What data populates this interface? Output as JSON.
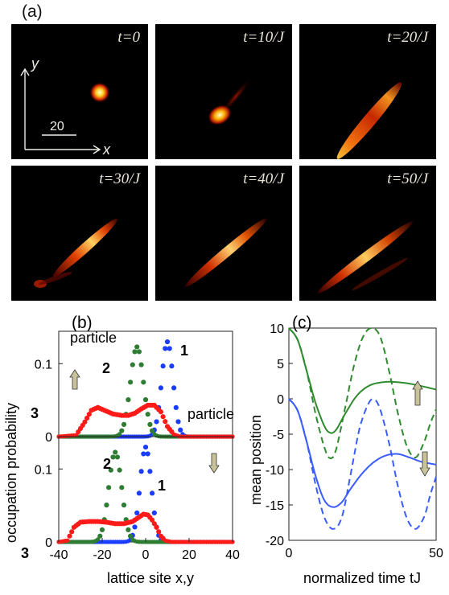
{
  "panel_a": {
    "label": "(a)",
    "frames": [
      {
        "time_label": "t=0"
      },
      {
        "time_label": "t=10/J"
      },
      {
        "time_label": "t=20/J"
      },
      {
        "time_label": "t=30/J"
      },
      {
        "time_label": "t=40/J"
      },
      {
        "time_label": "t=50/J"
      }
    ],
    "axis_y": "y",
    "axis_x": "x",
    "scale_bar": "20"
  },
  "chart_data": [
    {
      "panel": "(b)",
      "type": "scatter",
      "ylabel": "occupation probability",
      "xlabel": "lattice site x,y",
      "x_ticks": [
        "-40",
        "-20",
        "0",
        "20",
        "40"
      ],
      "xlim": [
        -40,
        40
      ],
      "subplots": [
        {
          "annotation": "particle",
          "spin": "up",
          "ylim": [
            0,
            0.14
          ],
          "y_ticks": [
            "0",
            "0.1"
          ],
          "series": [
            {
              "name": "1",
              "color": "#1a3cff",
              "center": 10,
              "width": 2.6,
              "peak": 0.13,
              "offset": 0
            },
            {
              "name": "2",
              "color": "#2e7d32",
              "center": -4,
              "width": 3.0,
              "peak": 0.123,
              "offset": 0
            },
            {
              "name": "3",
              "color": "#ff1a1a",
              "points": [
                [
                  -40,
                  0
                ],
                [
                  -32,
                  0.002
                ],
                [
                  -28,
                  0.02
                ],
                [
                  -25,
                  0.036
                ],
                [
                  -22,
                  0.04
                ],
                [
                  -19,
                  0.036
                ],
                [
                  -15,
                  0.031
                ],
                [
                  -11,
                  0.029
                ],
                [
                  -8,
                  0.029
                ],
                [
                  -5,
                  0.032
                ],
                [
                  -2,
                  0.038
                ],
                [
                  1,
                  0.043
                ],
                [
                  4,
                  0.043
                ],
                [
                  7,
                  0.034
                ],
                [
                  10,
                  0.014
                ],
                [
                  13,
                  0.003
                ],
                [
                  16,
                  0
                ],
                [
                  40,
                  0
                ]
              ]
            }
          ],
          "series_labels": [
            "1",
            "2",
            "3"
          ]
        },
        {
          "annotation": "particle",
          "spin": "down",
          "ylim": [
            0,
            0.14
          ],
          "y_ticks": [
            "0",
            "0.1"
          ],
          "series": [
            {
              "name": "1",
              "color": "#1a3cff",
              "center": 0,
              "width": 2.6,
              "peak": 0.13,
              "offset": 0
            },
            {
              "name": "2",
              "color": "#2e7d32",
              "center": -14,
              "width": 3.0,
              "peak": 0.123,
              "offset": 0
            },
            {
              "name": "3",
              "color": "#ff1a1a",
              "points": [
                [
                  -40,
                  0
                ],
                [
                  -36,
                  0.002
                ],
                [
                  -33,
                  0.02
                ],
                [
                  -30,
                  0.027
                ],
                [
                  -26,
                  0.028
                ],
                [
                  -22,
                  0.028
                ],
                [
                  -18,
                  0.027
                ],
                [
                  -14,
                  0.025
                ],
                [
                  -10,
                  0.025
                ],
                [
                  -6,
                  0.028
                ],
                [
                  -3,
                  0.034
                ],
                [
                  -1,
                  0.038
                ],
                [
                  1,
                  0.037
                ],
                [
                  3,
                  0.03
                ],
                [
                  5,
                  0.02
                ],
                [
                  7,
                  0.008
                ],
                [
                  9,
                  0.002
                ],
                [
                  12,
                  0
                ],
                [
                  40,
                  0
                ]
              ]
            }
          ],
          "series_labels": [
            "1",
            "2",
            "3"
          ]
        }
      ]
    },
    {
      "panel": "(c)",
      "type": "line",
      "ylabel": "mean position",
      "xlabel": "normalized time tJ",
      "xlim": [
        0,
        50
      ],
      "ylim": [
        -20,
        10
      ],
      "x_ticks": [
        "0",
        "50"
      ],
      "y_ticks": [
        "10",
        "5",
        "0",
        "-5",
        "-10",
        "-15",
        "-20"
      ],
      "series": [
        {
          "color": "#2e8b2e",
          "style": "solid",
          "points": [
            [
              0,
              10
            ],
            [
              3,
              8.3
            ],
            [
              6,
              4.0
            ],
            [
              9,
              -0.5
            ],
            [
              12,
              -3.8
            ],
            [
              14,
              -4.8
            ],
            [
              16,
              -4.4
            ],
            [
              19,
              -2.2
            ],
            [
              23,
              0.4
            ],
            [
              27,
              1.8
            ],
            [
              31,
              2.3
            ],
            [
              35,
              2.4
            ],
            [
              40,
              2.2
            ],
            [
              45,
              1.8
            ],
            [
              50,
              1.3
            ]
          ]
        },
        {
          "color": "#2e8b2e",
          "style": "dashed",
          "points": [
            [
              0,
              10
            ],
            [
              3,
              8.3
            ],
            [
              6,
              4.0
            ],
            [
              9,
              -2.0
            ],
            [
              12,
              -6.8
            ],
            [
              14,
              -8.4
            ],
            [
              16,
              -7.2
            ],
            [
              19,
              -1.5
            ],
            [
              22,
              4.5
            ],
            [
              25,
              8.6
            ],
            [
              28,
              10
            ],
            [
              31,
              8.8
            ],
            [
              34,
              4.0
            ],
            [
              37,
              -2.0
            ],
            [
              40,
              -6.6
            ],
            [
              43,
              -8.3
            ],
            [
              46,
              -6.0
            ],
            [
              48,
              -3.5
            ],
            [
              50,
              -1.5
            ]
          ]
        },
        {
          "color": "#3a5cff",
          "style": "solid",
          "points": [
            [
              0,
              0
            ],
            [
              3,
              -1.7
            ],
            [
              6,
              -6.0
            ],
            [
              9,
              -10.8
            ],
            [
              12,
              -14.3
            ],
            [
              15,
              -15.3
            ],
            [
              18,
              -14.6
            ],
            [
              21,
              -12.7
            ],
            [
              25,
              -10.5
            ],
            [
              29,
              -8.9
            ],
            [
              33,
              -8.0
            ],
            [
              37,
              -7.8
            ],
            [
              41,
              -8.3
            ],
            [
              45,
              -8.9
            ],
            [
              50,
              -9.3
            ]
          ]
        },
        {
          "color": "#3a5cff",
          "style": "dashed",
          "points": [
            [
              0,
              0
            ],
            [
              3,
              -1.7
            ],
            [
              6,
              -6.0
            ],
            [
              9,
              -12.0
            ],
            [
              12,
              -16.7
            ],
            [
              15,
              -18.4
            ],
            [
              18,
              -16.7
            ],
            [
              21,
              -10.6
            ],
            [
              24,
              -4.2
            ],
            [
              27,
              -0.7
            ],
            [
              29,
              -0.1
            ],
            [
              31,
              -1.5
            ],
            [
              34,
              -6.2
            ],
            [
              37,
              -12.3
            ],
            [
              40,
              -16.8
            ],
            [
              43,
              -18.4
            ],
            [
              46,
              -16.6
            ],
            [
              48,
              -13.6
            ],
            [
              50,
              -11.0
            ]
          ]
        }
      ]
    }
  ],
  "panel_b_label": "(b)",
  "panel_c_label": "(c)"
}
